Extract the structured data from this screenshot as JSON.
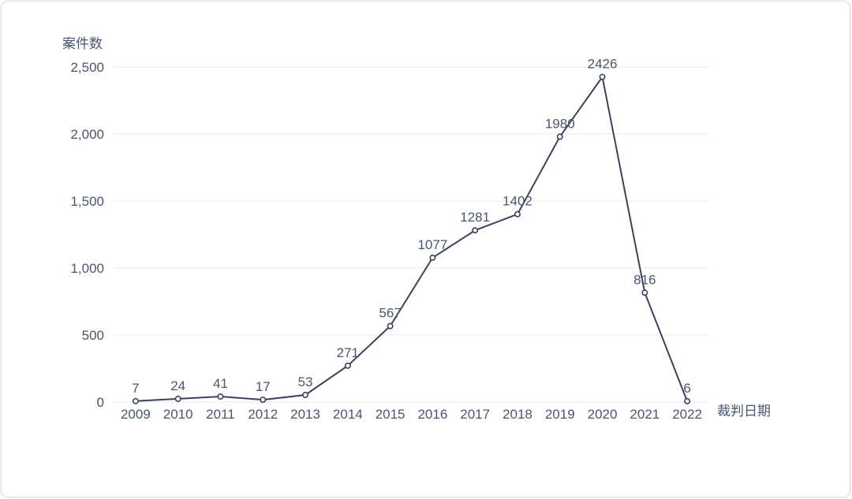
{
  "style": {
    "line_color": "#3b435c",
    "marker_fill": "#ffffff",
    "text_color": "#4a5570",
    "grid_color": "#e9edf4",
    "card_border_color": "#d9dde4",
    "background": "#ffffff"
  },
  "chart_data": {
    "type": "line",
    "title": "",
    "x": [
      "2009",
      "2010",
      "2011",
      "2012",
      "2013",
      "2014",
      "2015",
      "2016",
      "2017",
      "2018",
      "2019",
      "2020",
      "2021",
      "2022"
    ],
    "values": [
      7,
      24,
      41,
      17,
      53,
      271,
      567,
      1077,
      1281,
      1402,
      1980,
      2426,
      816,
      6
    ],
    "data_labels": [
      "7",
      "24",
      "41",
      "17",
      "53",
      "271",
      "567",
      "1077",
      "1281",
      "1402",
      "1980",
      "2426",
      "816",
      "6"
    ],
    "xlabel": "裁判日期",
    "ylabel": "案件数",
    "ylim": [
      0,
      2500
    ],
    "yticks": [
      0,
      500,
      1000,
      1500,
      2000,
      2500
    ],
    "ytick_labels": [
      "0",
      "500",
      "1,000",
      "1,500",
      "2,000",
      "2,500"
    ],
    "grid": true,
    "legend_position": "none"
  }
}
